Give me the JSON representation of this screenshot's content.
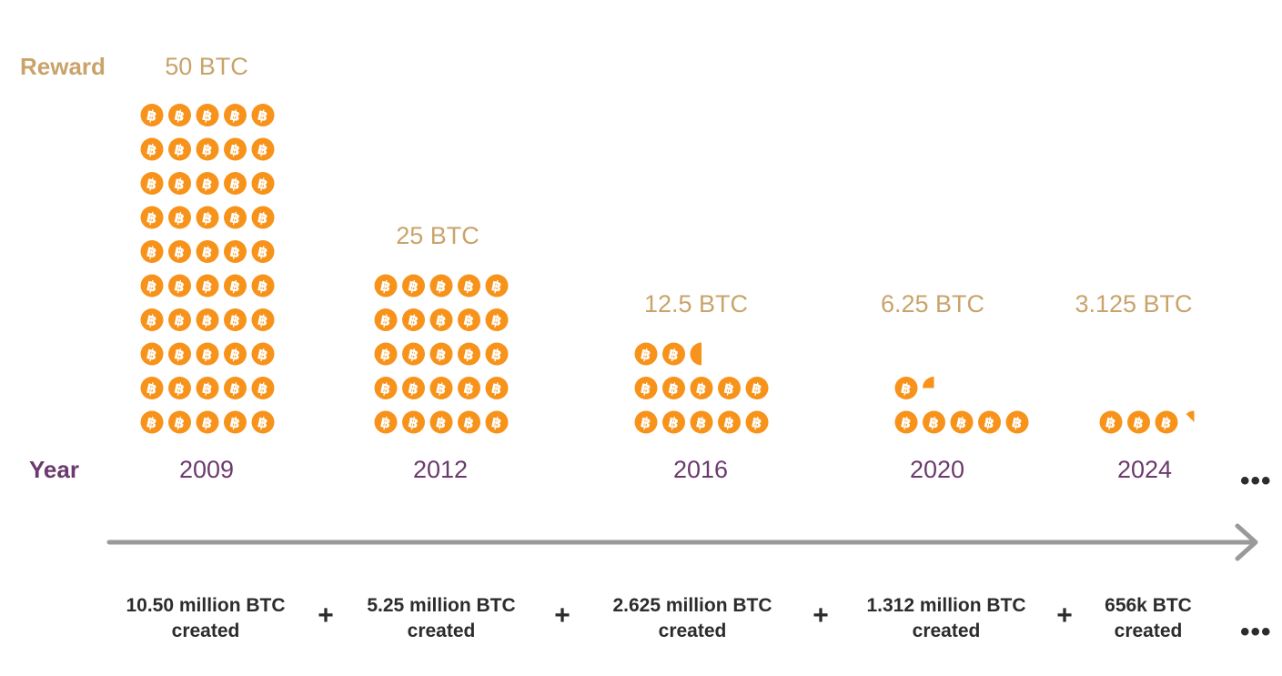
{
  "labels": {
    "reward": "Reward",
    "year": "Year",
    "plus": "+",
    "ellipsis": "•••"
  },
  "colors": {
    "reward_text": "#c9a36a",
    "year_text": "#6b3a6e",
    "coin": "#f7931a",
    "arrow": "#9a9a9a",
    "dark_text": "#2c2c2c"
  },
  "chart_data": {
    "type": "table",
    "x_label": "Year",
    "y_label": "Reward",
    "periods": [
      {
        "year": "2009",
        "reward_label": "50 BTC",
        "reward_btc": 50,
        "created_line1": "10.50 million BTC",
        "created_line2": "created"
      },
      {
        "year": "2012",
        "reward_label": "25 BTC",
        "reward_btc": 25,
        "created_line1": "5.25 million BTC",
        "created_line2": "created"
      },
      {
        "year": "2016",
        "reward_label": "12.5 BTC",
        "reward_btc": 12.5,
        "created_line1": "2.625 million BTC",
        "created_line2": "created"
      },
      {
        "year": "2020",
        "reward_label": "6.25 BTC",
        "reward_btc": 6.25,
        "created_line1": "1.312 million BTC",
        "created_line2": "created"
      },
      {
        "year": "2024",
        "reward_label": "3.125 BTC",
        "reward_btc": 3.125,
        "created_line1": "656k BTC",
        "created_line2": "created"
      }
    ],
    "coin_icon": "bitcoin-icon"
  }
}
